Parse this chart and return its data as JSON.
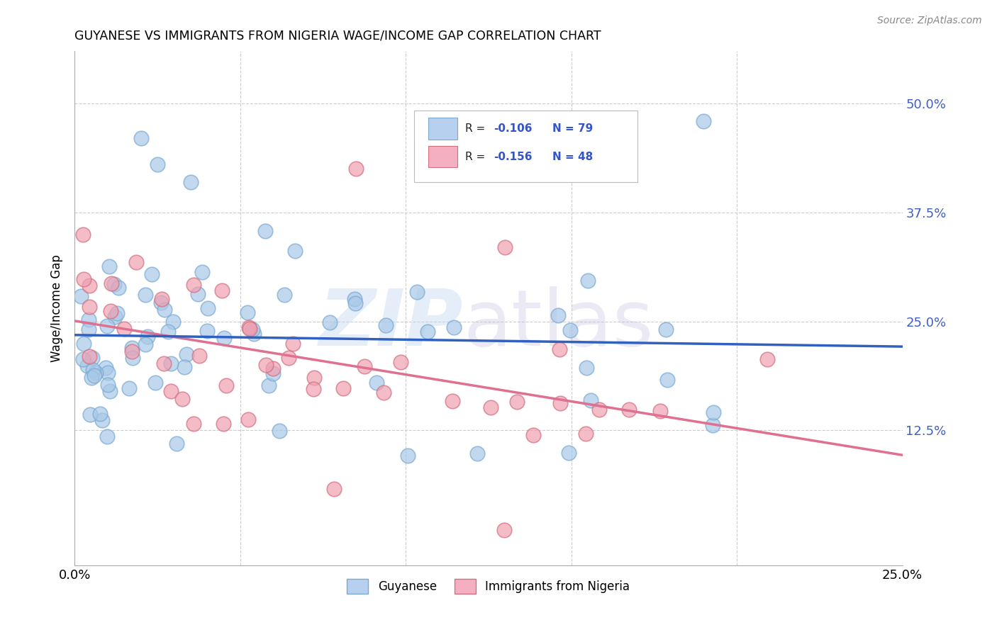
{
  "title": "GUYANESE VS IMMIGRANTS FROM NIGERIA WAGE/INCOME GAP CORRELATION CHART",
  "source": "Source: ZipAtlas.com",
  "ylabel": "Wage/Income Gap",
  "yticks": [
    0.0,
    0.125,
    0.25,
    0.375,
    0.5
  ],
  "ytick_labels": [
    "",
    "12.5%",
    "25.0%",
    "37.5%",
    "50.0%"
  ],
  "xlim": [
    0.0,
    0.25
  ],
  "ylim": [
    -0.03,
    0.56
  ],
  "guyanese_color": "#a8c8e8",
  "guyanese_edge": "#7aaad0",
  "nigeria_color": "#f0a0b0",
  "nigeria_edge": "#d07080",
  "regression_blue": "#3060c0",
  "regression_pink": "#e07090",
  "R_guyanese": -0.106,
  "N_guyanese": 79,
  "R_nigeria": -0.156,
  "N_nigeria": 48,
  "legend_label_guyanese": "Guyanese",
  "legend_label_nigeria": "Immigrants from Nigeria",
  "legend_swatch_blue": "#b8d0f0",
  "legend_swatch_pink": "#f4b0c0"
}
